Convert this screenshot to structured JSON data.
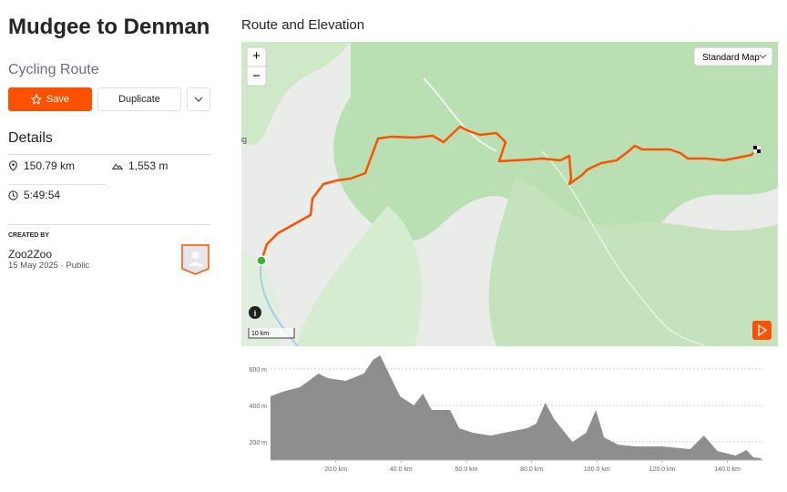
{
  "header": {
    "title": "Mudgee to Denman",
    "subtitle": "Cycling Route"
  },
  "actions": {
    "save": "Save",
    "duplicate": "Duplicate"
  },
  "details": {
    "heading": "Details",
    "distance": "150.79 km",
    "elevation_gain": "1,553 m",
    "moving_time": "5:49:54"
  },
  "creator": {
    "heading": "CREATED BY",
    "name": "Zoo2Zoo",
    "date": "15 May 2025",
    "visibility": "Public"
  },
  "map": {
    "heading": "Route and Elevation",
    "zoom_in": "+",
    "zoom_out": "−",
    "style_selector": "Standard Map",
    "place_label": "ng",
    "scale": "10 km"
  },
  "chart_data": {
    "type": "area",
    "color": "#8e8e8e",
    "x": [
      0,
      3.6,
      9,
      14.7,
      17.5,
      23,
      28.6,
      31.4,
      33.6,
      35.6,
      39.7,
      43.9,
      46.7,
      49.4,
      55,
      57.8,
      62,
      67.5,
      73,
      78.6,
      81.4,
      84.2,
      86.9,
      92.5,
      96.7,
      99.7,
      102.2,
      106.4,
      112,
      120.3,
      128.6,
      132.8,
      136.9,
      142.5,
      145.8,
      148,
      150.3
    ],
    "values": [
      450,
      475,
      500,
      575,
      550,
      535,
      575,
      650,
      675,
      600,
      450,
      400,
      465,
      375,
      375,
      275,
      250,
      235,
      255,
      275,
      300,
      415,
      325,
      200,
      250,
      375,
      225,
      185,
      175,
      175,
      160,
      235,
      150,
      125,
      155,
      115,
      110
    ],
    "xlim": [
      0,
      151
    ],
    "ylim": [
      100,
      700
    ],
    "xticks": [
      {
        "value": 20,
        "label": "20.0 km"
      },
      {
        "value": 40,
        "label": "40.0 km"
      },
      {
        "value": 60,
        "label": "60.0 km"
      },
      {
        "value": 80,
        "label": "80.0 km"
      },
      {
        "value": 100,
        "label": "100.0 km"
      },
      {
        "value": 120,
        "label": "120.0 km"
      },
      {
        "value": 140,
        "label": "140.0 km"
      }
    ],
    "yticks": [
      {
        "value": 200,
        "label": "200 m"
      },
      {
        "value": 400,
        "label": "400 m"
      },
      {
        "value": 600,
        "label": "600 m"
      }
    ],
    "grid": true
  }
}
